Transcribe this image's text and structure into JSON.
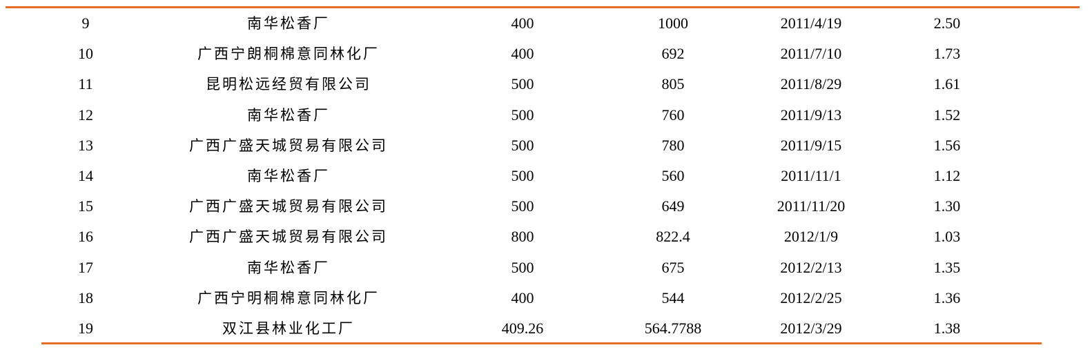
{
  "table": {
    "rule_color": "#e46c24",
    "rows": [
      {
        "no": "9",
        "company": "南华松香厂",
        "c3": "400",
        "c4": "1000",
        "date": "2011/4/19",
        "ratio": "2.50"
      },
      {
        "no": "10",
        "company": "广西宁朗桐棉意同林化厂",
        "c3": "400",
        "c4": "692",
        "date": "2011/7/10",
        "ratio": "1.73"
      },
      {
        "no": "11",
        "company": "昆明松远经贸有限公司",
        "c3": "500",
        "c4": "805",
        "date": "2011/8/29",
        "ratio": "1.61"
      },
      {
        "no": "12",
        "company": "南华松香厂",
        "c3": "500",
        "c4": "760",
        "date": "2011/9/13",
        "ratio": "1.52"
      },
      {
        "no": "13",
        "company": "广西广盛天城贸易有限公司",
        "c3": "500",
        "c4": "780",
        "date": "2011/9/15",
        "ratio": "1.56"
      },
      {
        "no": "14",
        "company": "南华松香厂",
        "c3": "500",
        "c4": "560",
        "date": "2011/11/1",
        "ratio": "1.12"
      },
      {
        "no": "15",
        "company": "广西广盛天城贸易有限公司",
        "c3": "500",
        "c4": "649",
        "date": "2011/11/20",
        "ratio": "1.30"
      },
      {
        "no": "16",
        "company": "广西广盛天城贸易有限公司",
        "c3": "800",
        "c4": "822.4",
        "date": "2012/1/9",
        "ratio": "1.03"
      },
      {
        "no": "17",
        "company": "南华松香厂",
        "c3": "500",
        "c4": "675",
        "date": "2012/2/13",
        "ratio": "1.35"
      },
      {
        "no": "18",
        "company": "广西宁明桐棉意同林化厂",
        "c3": "400",
        "c4": "544",
        "date": "2012/2/25",
        "ratio": "1.36"
      },
      {
        "no": "19",
        "company": "双江县林业化工厂",
        "c3": "409.26",
        "c4": "564.7788",
        "date": "2012/3/29",
        "ratio": "1.38"
      }
    ]
  }
}
